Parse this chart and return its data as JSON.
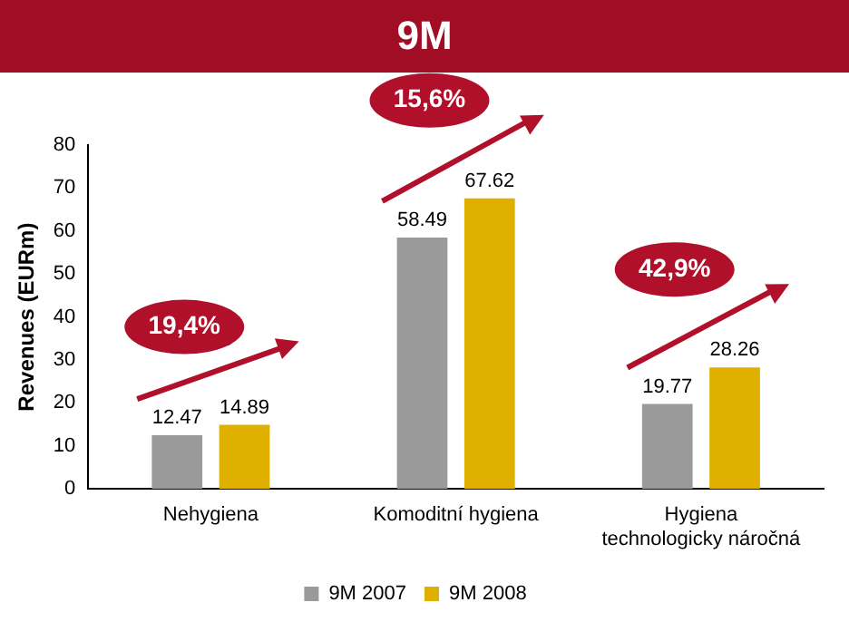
{
  "chart_data": {
    "type": "bar",
    "title": "9M",
    "ylabel": "Revenues (EURm)",
    "categories": [
      "Nehygiena",
      "Komoditní hygiena",
      "Hygiena technologicky náročná"
    ],
    "series": [
      {
        "name": "9M 2007",
        "color": "#9a9a9a",
        "values": [
          12.47,
          58.49,
          19.77
        ]
      },
      {
        "name": "9M 2008",
        "color": "#e0b000",
        "values": [
          14.89,
          67.62,
          28.26
        ]
      }
    ],
    "ylim": [
      0,
      80
    ],
    "yticks": [
      0,
      10,
      20,
      30,
      40,
      50,
      60,
      70,
      80
    ],
    "grid": false,
    "legend": "bottom",
    "data_labels": true,
    "annotations": [
      "19,4%",
      "15,6%",
      "42,9%"
    ]
  }
}
